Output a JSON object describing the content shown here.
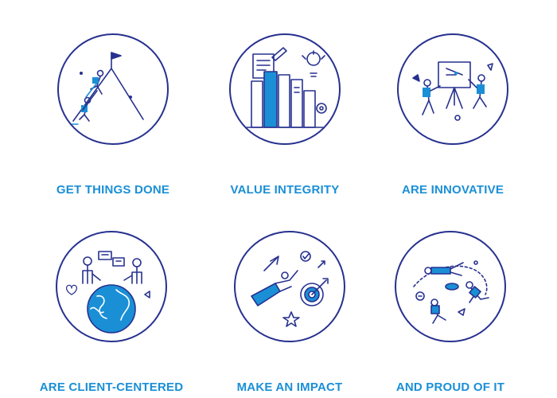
{
  "colors": {
    "navy": "#27318f",
    "blue": "#1a8fd6"
  },
  "values": [
    {
      "label": "GET THINGS DONE",
      "icon": "mountain-climbing-icon"
    },
    {
      "label": "VALUE INTEGRITY",
      "icon": "books-lightbulb-icon"
    },
    {
      "label": "ARE INNOVATIVE",
      "icon": "presentation-board-icon"
    },
    {
      "label": "ARE CLIENT-CENTERED",
      "icon": "globe-people-icon"
    },
    {
      "label": "MAKE AN IMPACT",
      "icon": "superhero-target-icon"
    },
    {
      "label": "AND PROUD OF IT",
      "icon": "floating-people-icon"
    }
  ]
}
